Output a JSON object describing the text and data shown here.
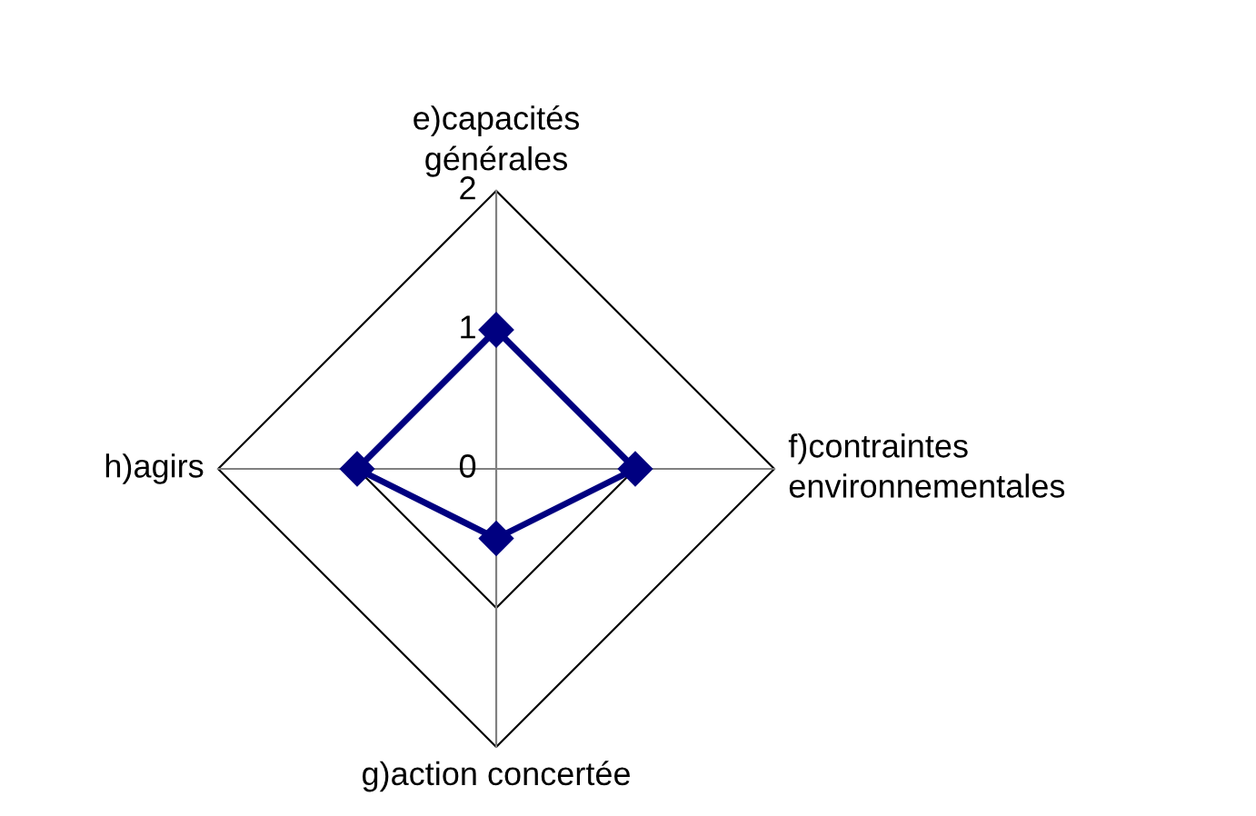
{
  "chart_data": {
    "type": "radar",
    "categories": [
      "e)capacités générales",
      "f)contraintes environnementales",
      "g)action concertée",
      "h)agirs"
    ],
    "series": [
      {
        "color": "#000080",
        "values": [
          1,
          1,
          0.5,
          1
        ]
      }
    ],
    "ylim": [
      0,
      2
    ],
    "yticks": [
      0,
      1,
      2
    ],
    "grid": true,
    "marker": "diamond",
    "line_style": "solid"
  }
}
